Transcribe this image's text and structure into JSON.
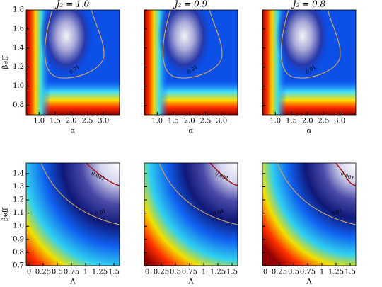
{
  "chart_data": [
    {
      "type": "heatmap",
      "title": "J₂ = 1.0",
      "xlabel": "α",
      "ylabel": "βeff",
      "xlim": [
        0.6,
        3.5
      ],
      "ylim": [
        0.7,
        1.8
      ],
      "xticks": [
        {
          "value": 1,
          "label": "1.0"
        },
        1.5,
        {
          "value": 2,
          "label": "2.0"
        },
        2.5,
        {
          "value": 3,
          "label": "3.0"
        }
      ],
      "yticks": [
        0.8,
        {
          "value": 1,
          "label": "1.0"
        },
        1.2,
        1.4,
        1.6,
        1.8
      ],
      "show_ytick_labels": true,
      "contour_labels": [
        "0.01"
      ]
    },
    {
      "type": "heatmap",
      "title": "J₂ = 0.9",
      "xlabel": "α",
      "xlim": [
        0.6,
        3.5
      ],
      "ylim": [
        0.7,
        1.8
      ],
      "xticks": [
        {
          "value": 1,
          "label": "1.0"
        },
        1.5,
        {
          "value": 2,
          "label": "2.0"
        },
        2.5,
        {
          "value": 3,
          "label": "3.0"
        }
      ],
      "yticks": [
        0.8,
        {
          "value": 1,
          "label": "1.0"
        },
        1.2,
        1.4,
        1.6,
        1.8
      ],
      "show_ytick_labels": false,
      "contour_labels": [
        "0.01"
      ]
    },
    {
      "type": "heatmap",
      "title": "J₂ = 0.8",
      "xlabel": "α",
      "xlim": [
        0.6,
        3.5
      ],
      "ylim": [
        0.7,
        1.8
      ],
      "xticks": [
        {
          "value": 1,
          "label": "1.0"
        },
        1.5,
        {
          "value": 2,
          "label": "2.0"
        },
        2.5,
        {
          "value": 3,
          "label": "3.0"
        }
      ],
      "yticks": [
        0.8,
        {
          "value": 1,
          "label": "1.0"
        },
        1.2,
        1.4,
        1.6,
        1.8
      ],
      "show_ytick_labels": false,
      "contour_labels": [
        "0.01"
      ]
    },
    {
      "type": "heatmap",
      "xlabel": "Λ",
      "ylabel": "βeff",
      "xlim": [
        -0.05,
        1.6
      ],
      "ylim": [
        0.7,
        1.48
      ],
      "xticks": [
        0,
        0.25,
        0.5,
        0.75,
        1,
        1.25,
        1.5
      ],
      "yticks": [
        0.7,
        0.8,
        0.9,
        {
          "value": 1,
          "label": "1.0"
        },
        1.1,
        1.2,
        1.3,
        1.4
      ],
      "show_ytick_labels": true,
      "contour_labels": [
        "0.01",
        "0.001"
      ]
    },
    {
      "type": "heatmap",
      "xlabel": "Λ",
      "xlim": [
        -0.05,
        1.6
      ],
      "ylim": [
        0.7,
        1.48
      ],
      "xticks": [
        0,
        0.25,
        0.5,
        0.75,
        1,
        1.25,
        1.5
      ],
      "yticks": [
        0.7,
        0.8,
        0.9,
        {
          "value": 1,
          "label": "1.0"
        },
        1.1,
        1.2,
        1.3,
        1.4
      ],
      "show_ytick_labels": false,
      "contour_labels": [
        "0.01",
        "0.001"
      ]
    },
    {
      "type": "heatmap",
      "xlabel": "Λ",
      "xlim": [
        -0.05,
        1.6
      ],
      "ylim": [
        0.7,
        1.48
      ],
      "xticks": [
        0,
        0.25,
        0.5,
        0.75,
        1,
        1.25,
        1.5
      ],
      "yticks": [
        0.7,
        0.8,
        0.9,
        {
          "value": 1,
          "label": "1.0"
        },
        1.1,
        1.2,
        1.3,
        1.4
      ],
      "show_ytick_labels": false,
      "contour_labels": [
        "0.01",
        "0.001"
      ]
    }
  ]
}
